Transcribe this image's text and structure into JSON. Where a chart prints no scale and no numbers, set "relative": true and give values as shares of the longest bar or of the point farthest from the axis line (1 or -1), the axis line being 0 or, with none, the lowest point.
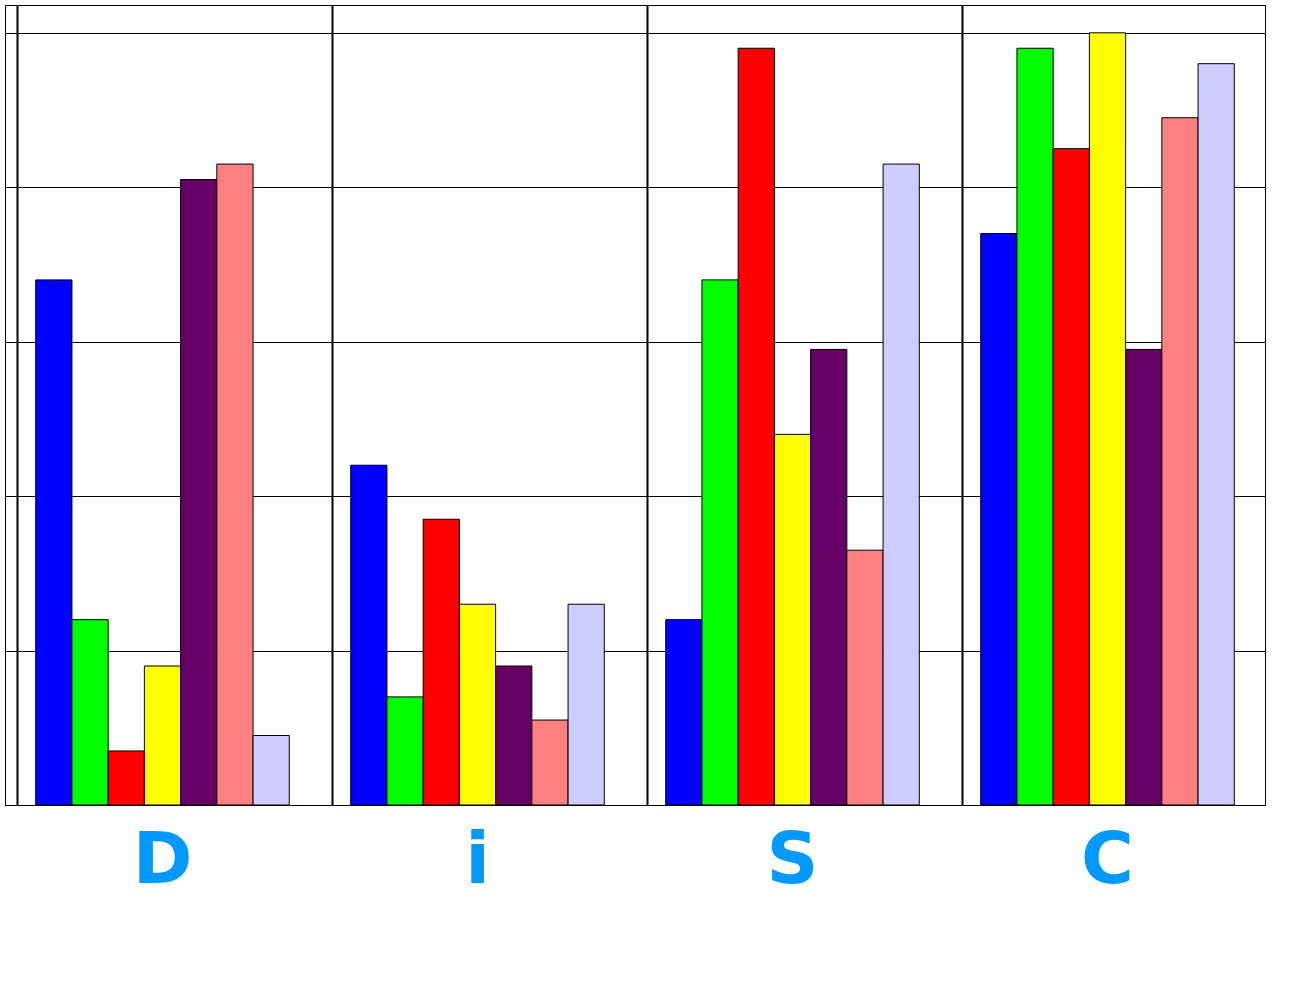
{
  "chart_data": {
    "type": "bar",
    "relative": true,
    "grid": true,
    "legend": false,
    "categories": [
      "D",
      "i",
      "S",
      "C"
    ],
    "series": [
      {
        "color": "#0000ff",
        "values": [
          0.68,
          0.44,
          0.24,
          0.74
        ]
      },
      {
        "color": "#00ff00",
        "values": [
          0.24,
          0.14,
          0.68,
          0.98
        ]
      },
      {
        "color": "#ff0000",
        "values": [
          0.07,
          0.37,
          0.98,
          0.85
        ]
      },
      {
        "color": "#ffff00",
        "values": [
          0.18,
          0.26,
          0.48,
          1
        ]
      },
      {
        "color": "#660066",
        "values": [
          0.81,
          0.18,
          0.59,
          0.59
        ]
      },
      {
        "color": "#ff8080",
        "values": [
          0.83,
          0.11,
          0.33,
          0.89
        ]
      },
      {
        "color": "#ccccff",
        "values": [
          0.09,
          0.26,
          0.83,
          0.96
        ]
      }
    ]
  }
}
